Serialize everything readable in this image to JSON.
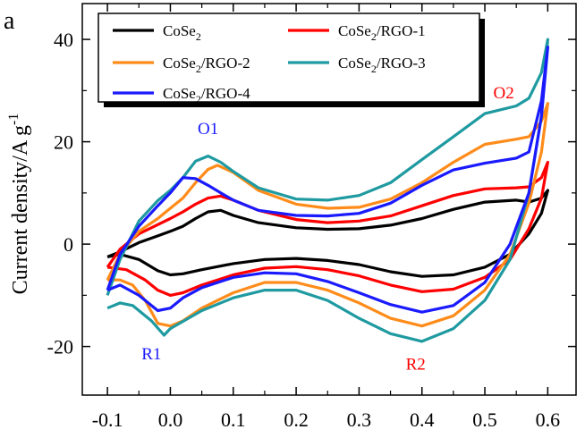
{
  "panel_label": "a",
  "chart_data": {
    "type": "line",
    "title": "",
    "xlabel": "",
    "ylabel": "Current density/A g⁻¹",
    "xlim": [
      -0.14,
      0.645
    ],
    "ylim": [
      -29.5,
      47
    ],
    "x_ticks": [
      -0.1,
      0.0,
      0.1,
      0.2,
      0.3,
      0.4,
      0.5,
      0.6
    ],
    "x_tick_labels": [
      "-0.1",
      "0.0",
      "0.1",
      "0.2",
      "0.3",
      "0.4",
      "0.5",
      "0.6"
    ],
    "y_ticks": [
      -20,
      0,
      20,
      40
    ],
    "y_tick_labels": [
      "-20",
      "0",
      "20",
      "40"
    ],
    "grid": false,
    "legend_position": "top-left",
    "series": [
      {
        "name": "CoSe₂",
        "color": "#000000",
        "upper": [
          [
            -0.1,
            -2.5
          ],
          [
            -0.08,
            -1.5
          ],
          [
            -0.05,
            0.3
          ],
          [
            -0.02,
            1.6
          ],
          [
            0.0,
            2.5
          ],
          [
            0.02,
            3.5
          ],
          [
            0.04,
            5.0
          ],
          [
            0.06,
            6.3
          ],
          [
            0.08,
            6.6
          ],
          [
            0.1,
            5.6
          ],
          [
            0.14,
            4.2
          ],
          [
            0.2,
            3.2
          ],
          [
            0.25,
            2.9
          ],
          [
            0.3,
            3.0
          ],
          [
            0.35,
            3.7
          ],
          [
            0.4,
            5.0
          ],
          [
            0.45,
            6.8
          ],
          [
            0.5,
            8.2
          ],
          [
            0.55,
            8.6
          ],
          [
            0.57,
            8.2
          ],
          [
            0.59,
            9.0
          ],
          [
            0.6,
            10.5
          ]
        ],
        "lower": [
          [
            0.6,
            10.5
          ],
          [
            0.59,
            6.0
          ],
          [
            0.57,
            2.0
          ],
          [
            0.54,
            -2.0
          ],
          [
            0.5,
            -4.5
          ],
          [
            0.45,
            -6.0
          ],
          [
            0.4,
            -6.3
          ],
          [
            0.35,
            -5.4
          ],
          [
            0.3,
            -4.0
          ],
          [
            0.25,
            -3.2
          ],
          [
            0.2,
            -2.8
          ],
          [
            0.15,
            -3.0
          ],
          [
            0.1,
            -3.8
          ],
          [
            0.05,
            -5.0
          ],
          [
            0.02,
            -5.8
          ],
          [
            0.0,
            -6.0
          ],
          [
            -0.02,
            -5.2
          ],
          [
            -0.05,
            -3.0
          ],
          [
            -0.08,
            -2.0
          ],
          [
            -0.1,
            -2.5
          ]
        ]
      },
      {
        "name": "CoSe₂/RGO-1",
        "color": "#ff0000",
        "upper": [
          [
            -0.1,
            -4.5
          ],
          [
            -0.08,
            -1.0
          ],
          [
            -0.05,
            2.0
          ],
          [
            -0.02,
            3.8
          ],
          [
            0.0,
            5.0
          ],
          [
            0.02,
            6.3
          ],
          [
            0.04,
            7.8
          ],
          [
            0.06,
            9.0
          ],
          [
            0.08,
            9.4
          ],
          [
            0.1,
            8.6
          ],
          [
            0.14,
            6.6
          ],
          [
            0.2,
            4.8
          ],
          [
            0.25,
            4.2
          ],
          [
            0.3,
            4.5
          ],
          [
            0.35,
            5.5
          ],
          [
            0.4,
            7.5
          ],
          [
            0.45,
            9.5
          ],
          [
            0.5,
            10.8
          ],
          [
            0.55,
            11.0
          ],
          [
            0.57,
            11.2
          ],
          [
            0.59,
            13.0
          ],
          [
            0.6,
            16.0
          ]
        ],
        "lower": [
          [
            0.6,
            16.0
          ],
          [
            0.59,
            9.0
          ],
          [
            0.57,
            3.0
          ],
          [
            0.54,
            -3.0
          ],
          [
            0.5,
            -6.5
          ],
          [
            0.45,
            -8.8
          ],
          [
            0.4,
            -9.3
          ],
          [
            0.35,
            -8.0
          ],
          [
            0.3,
            -6.2
          ],
          [
            0.25,
            -5.0
          ],
          [
            0.2,
            -4.4
          ],
          [
            0.15,
            -4.7
          ],
          [
            0.1,
            -6.0
          ],
          [
            0.05,
            -8.0
          ],
          [
            0.02,
            -9.5
          ],
          [
            0.0,
            -10.0
          ],
          [
            -0.02,
            -9.0
          ],
          [
            -0.04,
            -7.0
          ],
          [
            -0.07,
            -5.0
          ],
          [
            -0.1,
            -4.5
          ]
        ]
      },
      {
        "name": "CoSe₂/RGO-2",
        "color": "#ff8c1a",
        "upper": [
          [
            -0.1,
            -7.0
          ],
          [
            -0.08,
            -2.0
          ],
          [
            -0.05,
            2.5
          ],
          [
            -0.02,
            5.0
          ],
          [
            0.0,
            7.0
          ],
          [
            0.02,
            9.0
          ],
          [
            0.04,
            12.0
          ],
          [
            0.06,
            14.6
          ],
          [
            0.075,
            15.4
          ],
          [
            0.1,
            14.0
          ],
          [
            0.14,
            10.5
          ],
          [
            0.2,
            7.8
          ],
          [
            0.25,
            7.0
          ],
          [
            0.3,
            7.2
          ],
          [
            0.35,
            8.8
          ],
          [
            0.4,
            12.0
          ],
          [
            0.45,
            16.0
          ],
          [
            0.5,
            19.5
          ],
          [
            0.55,
            20.5
          ],
          [
            0.57,
            21.0
          ],
          [
            0.59,
            24.0
          ],
          [
            0.6,
            27.5
          ]
        ],
        "lower": [
          [
            0.6,
            27.5
          ],
          [
            0.59,
            18.0
          ],
          [
            0.57,
            8.0
          ],
          [
            0.54,
            -2.0
          ],
          [
            0.5,
            -9.0
          ],
          [
            0.45,
            -14.0
          ],
          [
            0.4,
            -16.0
          ],
          [
            0.35,
            -14.5
          ],
          [
            0.3,
            -11.5
          ],
          [
            0.25,
            -9.0
          ],
          [
            0.2,
            -7.5
          ],
          [
            0.15,
            -7.5
          ],
          [
            0.1,
            -9.5
          ],
          [
            0.05,
            -12.5
          ],
          [
            0.02,
            -15.0
          ],
          [
            0.0,
            -16.0
          ],
          [
            -0.02,
            -15.5
          ],
          [
            -0.04,
            -11.0
          ],
          [
            -0.06,
            -8.0
          ],
          [
            -0.08,
            -7.0
          ],
          [
            -0.1,
            -7.0
          ]
        ]
      },
      {
        "name": "CoSe₂/RGO-3",
        "color": "#1e9aa0",
        "upper": [
          [
            -0.1,
            -10.0
          ],
          [
            -0.08,
            -3.0
          ],
          [
            -0.05,
            4.5
          ],
          [
            -0.02,
            8.5
          ],
          [
            0.0,
            10.5
          ],
          [
            0.02,
            13.0
          ],
          [
            0.04,
            16.2
          ],
          [
            0.06,
            17.2
          ],
          [
            0.08,
            16.0
          ],
          [
            0.1,
            14.2
          ],
          [
            0.14,
            11.0
          ],
          [
            0.2,
            8.8
          ],
          [
            0.25,
            8.6
          ],
          [
            0.3,
            9.5
          ],
          [
            0.35,
            12.0
          ],
          [
            0.4,
            16.5
          ],
          [
            0.45,
            21.0
          ],
          [
            0.5,
            25.5
          ],
          [
            0.55,
            27.0
          ],
          [
            0.57,
            28.5
          ],
          [
            0.59,
            33.5
          ],
          [
            0.6,
            40.0
          ]
        ],
        "lower": [
          [
            0.6,
            40.0
          ],
          [
            0.59,
            25.0
          ],
          [
            0.57,
            10.0
          ],
          [
            0.54,
            -3.0
          ],
          [
            0.5,
            -11.0
          ],
          [
            0.45,
            -16.5
          ],
          [
            0.4,
            -19.0
          ],
          [
            0.35,
            -17.5
          ],
          [
            0.3,
            -14.5
          ],
          [
            0.25,
            -11.0
          ],
          [
            0.2,
            -9.0
          ],
          [
            0.15,
            -9.0
          ],
          [
            0.1,
            -10.5
          ],
          [
            0.05,
            -13.0
          ],
          [
            0.0,
            -16.5
          ],
          [
            -0.01,
            -17.8
          ],
          [
            -0.03,
            -15.0
          ],
          [
            -0.06,
            -12.0
          ],
          [
            -0.08,
            -11.5
          ],
          [
            -0.1,
            -12.5
          ]
        ]
      },
      {
        "name": "CoSe₂/RGO-4",
        "color": "#1a1aff",
        "upper": [
          [
            -0.1,
            -9.0
          ],
          [
            -0.08,
            -2.0
          ],
          [
            -0.05,
            3.5
          ],
          [
            -0.02,
            7.5
          ],
          [
            0.0,
            10.0
          ],
          [
            0.02,
            13.0
          ],
          [
            0.04,
            12.8
          ],
          [
            0.06,
            11.5
          ],
          [
            0.08,
            10.0
          ],
          [
            0.1,
            8.6
          ],
          [
            0.14,
            6.6
          ],
          [
            0.2,
            5.6
          ],
          [
            0.25,
            5.5
          ],
          [
            0.3,
            6.0
          ],
          [
            0.35,
            8.0
          ],
          [
            0.4,
            11.5
          ],
          [
            0.45,
            14.5
          ],
          [
            0.5,
            15.8
          ],
          [
            0.55,
            16.8
          ],
          [
            0.57,
            18.0
          ],
          [
            0.59,
            28.0
          ],
          [
            0.6,
            38.5
          ]
        ],
        "lower": [
          [
            0.6,
            38.5
          ],
          [
            0.59,
            25.0
          ],
          [
            0.57,
            10.0
          ],
          [
            0.54,
            0.0
          ],
          [
            0.5,
            -7.5
          ],
          [
            0.45,
            -12.0
          ],
          [
            0.4,
            -13.3
          ],
          [
            0.35,
            -11.8
          ],
          [
            0.3,
            -9.5
          ],
          [
            0.25,
            -7.3
          ],
          [
            0.2,
            -5.8
          ],
          [
            0.15,
            -5.6
          ],
          [
            0.1,
            -6.5
          ],
          [
            0.05,
            -8.5
          ],
          [
            0.02,
            -10.5
          ],
          [
            0.0,
            -12.5
          ],
          [
            -0.02,
            -13.0
          ],
          [
            -0.05,
            -10.0
          ],
          [
            -0.08,
            -8.0
          ],
          [
            -0.1,
            -9.0
          ]
        ]
      }
    ],
    "annotations": [
      {
        "text": "O1",
        "x": 0.06,
        "y": 21.5,
        "color": "#1a1aff"
      },
      {
        "text": "O2",
        "x": 0.53,
        "y": 28.5,
        "color": "#ff0000"
      },
      {
        "text": "R1",
        "x": -0.03,
        "y": -22.5,
        "color": "#1a1aff"
      },
      {
        "text": "R2",
        "x": 0.39,
        "y": -24.5,
        "color": "#ff0000"
      }
    ]
  }
}
